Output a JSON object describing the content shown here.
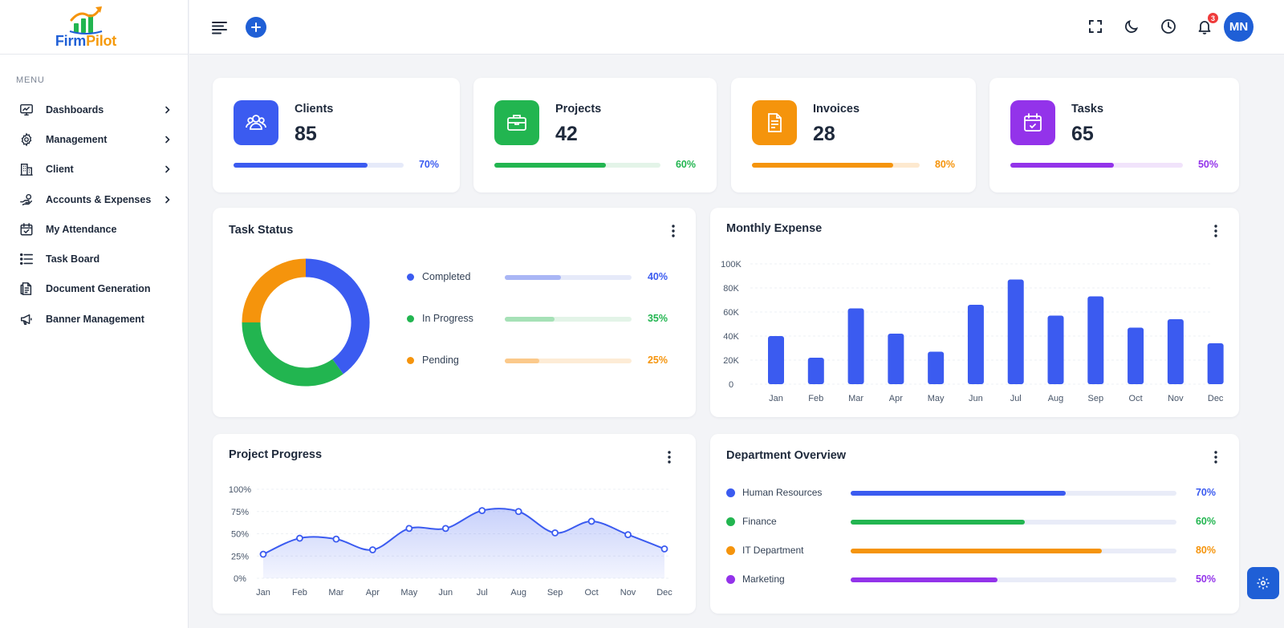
{
  "brand": {
    "name_part1": "Firm",
    "name_part2": "Pilot"
  },
  "sidebar": {
    "menu_title": "MENU",
    "items": [
      {
        "label": "Dashboards",
        "icon": "monitor-icon",
        "has_submenu": true
      },
      {
        "label": "Management",
        "icon": "gear-icon",
        "has_submenu": true
      },
      {
        "label": "Client",
        "icon": "building-icon",
        "has_submenu": true
      },
      {
        "label": "Accounts & Expenses",
        "icon": "hand-coin-icon",
        "has_submenu": true
      },
      {
        "label": "My Attendance",
        "icon": "calendar-check-icon",
        "has_submenu": false
      },
      {
        "label": "Task Board",
        "icon": "list-icon",
        "has_submenu": false
      },
      {
        "label": "Document Generation",
        "icon": "document-icon",
        "has_submenu": false
      },
      {
        "label": "Banner Management",
        "icon": "megaphone-icon",
        "has_submenu": false
      }
    ]
  },
  "header": {
    "notification_count": "3",
    "avatar_initials": "MN",
    "icons": [
      "menu-icon",
      "plus-icon",
      "fullscreen-icon",
      "moon-icon",
      "clock-icon",
      "bell-icon"
    ]
  },
  "stats": [
    {
      "label": "Clients",
      "value": "85",
      "percent_label": "70%",
      "progress": 0.79,
      "color": "#3b5bf0",
      "track": "#e6eaf9",
      "icon": "users-icon"
    },
    {
      "label": "Projects",
      "value": "42",
      "percent_label": "60%",
      "progress": 0.67,
      "color": "#22b550",
      "track": "#e3f4e8",
      "icon": "briefcase-icon"
    },
    {
      "label": "Invoices",
      "value": "28",
      "percent_label": "80%",
      "progress": 0.84,
      "color": "#f5940c",
      "track": "#fde9cf",
      "icon": "invoice-icon"
    },
    {
      "label": "Tasks",
      "value": "65",
      "percent_label": "50%",
      "progress": 0.6,
      "color": "#9333ea",
      "track": "#f1e3fb",
      "icon": "calendar-icon"
    }
  ],
  "task_status": {
    "title": "Task Status",
    "items": [
      {
        "label": "Completed",
        "percent_label": "40%",
        "value": 40,
        "progress": 0.44,
        "color": "#3b5bf0",
        "track": "#e6eaf9",
        "fill": "#a9b6f5"
      },
      {
        "label": "In Progress",
        "percent_label": "35%",
        "value": 35,
        "progress": 0.39,
        "color": "#22b550",
        "track": "#e3f4e8",
        "fill": "#a6e1b7"
      },
      {
        "label": "Pending",
        "percent_label": "25%",
        "value": 25,
        "progress": 0.27,
        "color": "#f5940c",
        "track": "#fdecd6",
        "fill": "#fbc98a"
      }
    ]
  },
  "monthly_expense": {
    "title": "Monthly Expense",
    "chart_data": {
      "type": "bar",
      "categories": [
        "Jan",
        "Feb",
        "Mar",
        "Apr",
        "May",
        "Jun",
        "Jul",
        "Aug",
        "Sep",
        "Oct",
        "Nov",
        "Dec"
      ],
      "values": [
        40000,
        22000,
        63000,
        42000,
        27000,
        66000,
        87000,
        57000,
        73000,
        47000,
        54000,
        34000
      ],
      "yticks": [
        "0",
        "20K",
        "40K",
        "60K",
        "80K",
        "100K"
      ],
      "ylim": [
        0,
        100000
      ],
      "color": "#3b5bf0",
      "grid": true
    }
  },
  "project_progress": {
    "title": "Project Progress",
    "chart_data": {
      "type": "area",
      "categories": [
        "Jan",
        "Feb",
        "Mar",
        "Apr",
        "May",
        "Jun",
        "Jul",
        "Aug",
        "Sep",
        "Oct",
        "Nov",
        "Dec"
      ],
      "values": [
        27,
        45,
        44,
        32,
        56,
        56,
        76,
        75,
        51,
        64,
        49,
        33
      ],
      "yticks": [
        "0%",
        "25%",
        "50%",
        "75%",
        "100%"
      ],
      "ylim": [
        0,
        100
      ],
      "color": "#3b5bf0",
      "grid": true
    }
  },
  "department_overview": {
    "title": "Department Overview",
    "items": [
      {
        "label": "Human Resources",
        "percent_label": "70%",
        "progress": 0.66,
        "color": "#3b5bf0",
        "track": "#e9ecf8"
      },
      {
        "label": "Finance",
        "percent_label": "60%",
        "progress": 0.535,
        "color": "#22b550",
        "track": "#e9ecf8"
      },
      {
        "label": "IT Department",
        "percent_label": "80%",
        "progress": 0.77,
        "color": "#f5940c",
        "track": "#e9ecf8"
      },
      {
        "label": "Marketing",
        "percent_label": "50%",
        "progress": 0.45,
        "color": "#9333ea",
        "track": "#e9ecf8"
      }
    ]
  }
}
